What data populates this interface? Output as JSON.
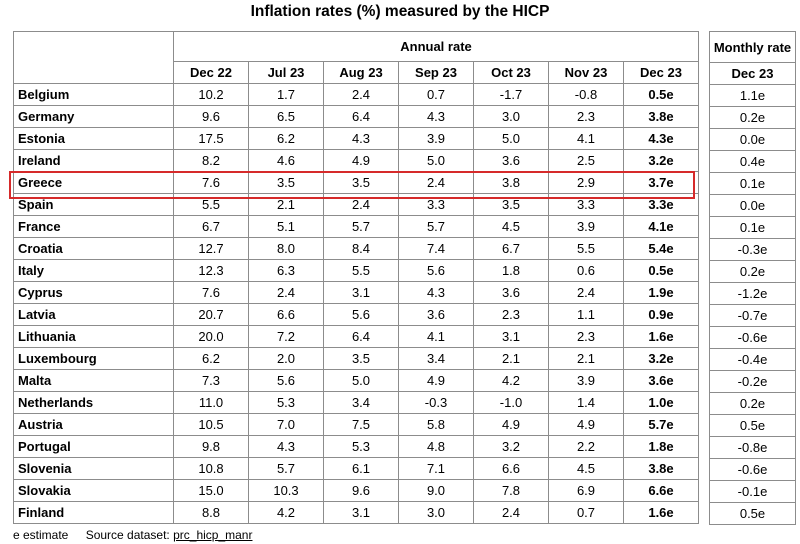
{
  "title": "Inflation rates (%) measured by the HICP",
  "annual_header": "Annual rate",
  "monthly_header": "Monthly rate",
  "monthly_col": "Dec 23",
  "footer": {
    "estimate": "e estimate",
    "source_label": "Source dataset:",
    "source_code": "prc_hicp_manr"
  },
  "highlight_color": "#d62a2a",
  "chart_data": {
    "type": "table",
    "title": "Inflation rates (%) measured by the HICP",
    "columns": [
      "Dec 22",
      "Jul 23",
      "Aug 23",
      "Sep 23",
      "Oct 23",
      "Nov 23",
      "Dec 23"
    ],
    "monthly_column": "Dec 23",
    "rows": [
      {
        "country": "Belgium",
        "annual": [
          "10.2",
          "1.7",
          "2.4",
          "0.7",
          "-1.7",
          "-0.8",
          "0.5e"
        ],
        "monthly": "1.1e"
      },
      {
        "country": "Germany",
        "annual": [
          "9.6",
          "6.5",
          "6.4",
          "4.3",
          "3.0",
          "2.3",
          "3.8e"
        ],
        "monthly": "0.2e"
      },
      {
        "country": "Estonia",
        "annual": [
          "17.5",
          "6.2",
          "4.3",
          "3.9",
          "5.0",
          "4.1",
          "4.3e"
        ],
        "monthly": "0.0e"
      },
      {
        "country": "Ireland",
        "annual": [
          "8.2",
          "4.6",
          "4.9",
          "5.0",
          "3.6",
          "2.5",
          "3.2e"
        ],
        "monthly": "0.4e"
      },
      {
        "country": "Greece",
        "annual": [
          "7.6",
          "3.5",
          "3.5",
          "2.4",
          "3.8",
          "2.9",
          "3.7e"
        ],
        "monthly": "0.1e",
        "highlighted": true
      },
      {
        "country": "Spain",
        "annual": [
          "5.5",
          "2.1",
          "2.4",
          "3.3",
          "3.5",
          "3.3",
          "3.3e"
        ],
        "monthly": "0.0e"
      },
      {
        "country": "France",
        "annual": [
          "6.7",
          "5.1",
          "5.7",
          "5.7",
          "4.5",
          "3.9",
          "4.1e"
        ],
        "monthly": "0.1e"
      },
      {
        "country": "Croatia",
        "annual": [
          "12.7",
          "8.0",
          "8.4",
          "7.4",
          "6.7",
          "5.5",
          "5.4e"
        ],
        "monthly": "-0.3e"
      },
      {
        "country": "Italy",
        "annual": [
          "12.3",
          "6.3",
          "5.5",
          "5.6",
          "1.8",
          "0.6",
          "0.5e"
        ],
        "monthly": "0.2e"
      },
      {
        "country": "Cyprus",
        "annual": [
          "7.6",
          "2.4",
          "3.1",
          "4.3",
          "3.6",
          "2.4",
          "1.9e"
        ],
        "monthly": "-1.2e"
      },
      {
        "country": "Latvia",
        "annual": [
          "20.7",
          "6.6",
          "5.6",
          "3.6",
          "2.3",
          "1.1",
          "0.9e"
        ],
        "monthly": "-0.7e"
      },
      {
        "country": "Lithuania",
        "annual": [
          "20.0",
          "7.2",
          "6.4",
          "4.1",
          "3.1",
          "2.3",
          "1.6e"
        ],
        "monthly": "-0.6e"
      },
      {
        "country": "Luxembourg",
        "annual": [
          "6.2",
          "2.0",
          "3.5",
          "3.4",
          "2.1",
          "2.1",
          "3.2e"
        ],
        "monthly": "-0.4e"
      },
      {
        "country": "Malta",
        "annual": [
          "7.3",
          "5.6",
          "5.0",
          "4.9",
          "4.2",
          "3.9",
          "3.6e"
        ],
        "monthly": "-0.2e"
      },
      {
        "country": "Netherlands",
        "annual": [
          "11.0",
          "5.3",
          "3.4",
          "-0.3",
          "-1.0",
          "1.4",
          "1.0e"
        ],
        "monthly": "0.2e"
      },
      {
        "country": "Austria",
        "annual": [
          "10.5",
          "7.0",
          "7.5",
          "5.8",
          "4.9",
          "4.9",
          "5.7e"
        ],
        "monthly": "0.5e"
      },
      {
        "country": "Portugal",
        "annual": [
          "9.8",
          "4.3",
          "5.3",
          "4.8",
          "3.2",
          "2.2",
          "1.8e"
        ],
        "monthly": "-0.8e"
      },
      {
        "country": "Slovenia",
        "annual": [
          "10.8",
          "5.7",
          "6.1",
          "7.1",
          "6.6",
          "4.5",
          "3.8e"
        ],
        "monthly": "-0.6e"
      },
      {
        "country": "Slovakia",
        "annual": [
          "15.0",
          "10.3",
          "9.6",
          "9.0",
          "7.8",
          "6.9",
          "6.6e"
        ],
        "monthly": "-0.1e"
      },
      {
        "country": "Finland",
        "annual": [
          "8.8",
          "4.2",
          "3.1",
          "3.0",
          "2.4",
          "0.7",
          "1.6e"
        ],
        "monthly": "0.5e"
      }
    ]
  }
}
